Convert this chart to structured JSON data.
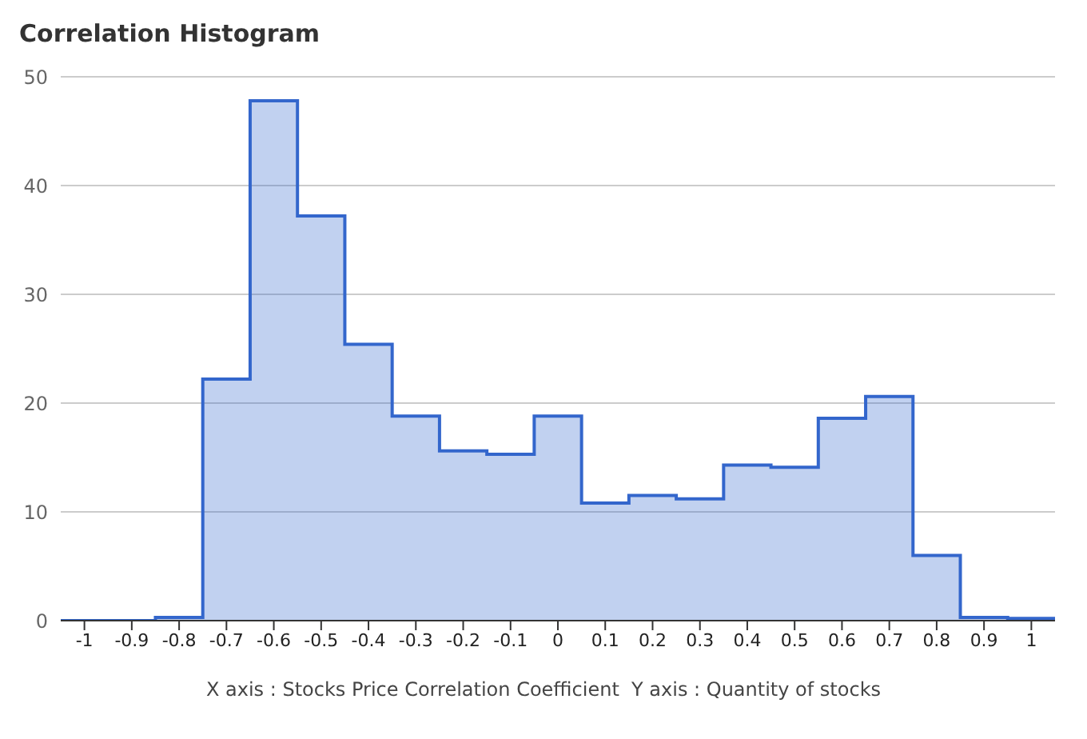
{
  "chart_data": {
    "type": "histogram",
    "title": "Correlation Histogram",
    "xlabel": "X axis : Stocks Price Correlation Coefficient  Y axis : Quantity of stocks",
    "bins": [
      -1.05,
      -0.95,
      -0.85,
      -0.75,
      -0.65,
      -0.55,
      -0.45,
      -0.35,
      -0.25,
      -0.15,
      -0.05,
      0.05,
      0.15,
      0.25,
      0.35,
      0.45,
      0.55,
      0.65,
      0.75,
      0.85,
      0.95,
      1.05
    ],
    "values": [
      0,
      0,
      0.3,
      22.2,
      47.8,
      37.2,
      25.4,
      18.8,
      15.6,
      15.3,
      18.8,
      10.8,
      11.5,
      11.2,
      14.3,
      14.1,
      18.6,
      20.6,
      6.0,
      0.3,
      0.2
    ],
    "color": "#3366cc",
    "xlim": [
      -1.05,
      1.05
    ],
    "xticks": [
      -1,
      -0.9,
      -0.8,
      -0.7,
      -0.6,
      -0.5,
      -0.4,
      -0.3,
      -0.2,
      -0.1,
      0,
      0.1,
      0.2,
      0.3,
      0.4,
      0.5,
      0.6,
      0.7,
      0.8,
      0.9,
      1
    ],
    "ylim": [
      0,
      50
    ],
    "yticks": [
      0,
      10,
      20,
      30,
      40,
      50
    ],
    "grid": "y"
  }
}
